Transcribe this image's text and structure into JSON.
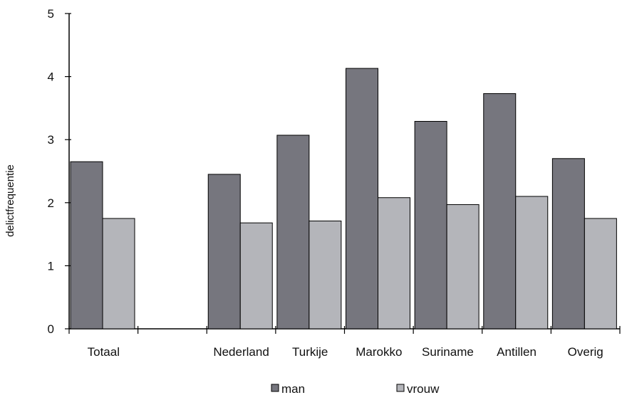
{
  "chart_data": {
    "type": "bar",
    "ylabel": "delictfrequentie",
    "ylim": [
      0,
      5
    ],
    "yticks": [
      0,
      1,
      2,
      3,
      4,
      5
    ],
    "grid": false,
    "legend_placement": "bottom",
    "categories": [
      "Totaal",
      "",
      "Nederland",
      "Turkije",
      "Marokko",
      "Suriname",
      "Antillen",
      "Overig"
    ],
    "series": [
      {
        "name": "man",
        "color": "#76767e",
        "values": [
          2.65,
          null,
          2.45,
          3.07,
          4.13,
          3.29,
          3.73,
          2.7
        ]
      },
      {
        "name": "vrouw",
        "color": "#b4b5ba",
        "values": [
          1.75,
          null,
          1.68,
          1.71,
          2.08,
          1.97,
          2.1,
          1.75
        ]
      }
    ]
  }
}
